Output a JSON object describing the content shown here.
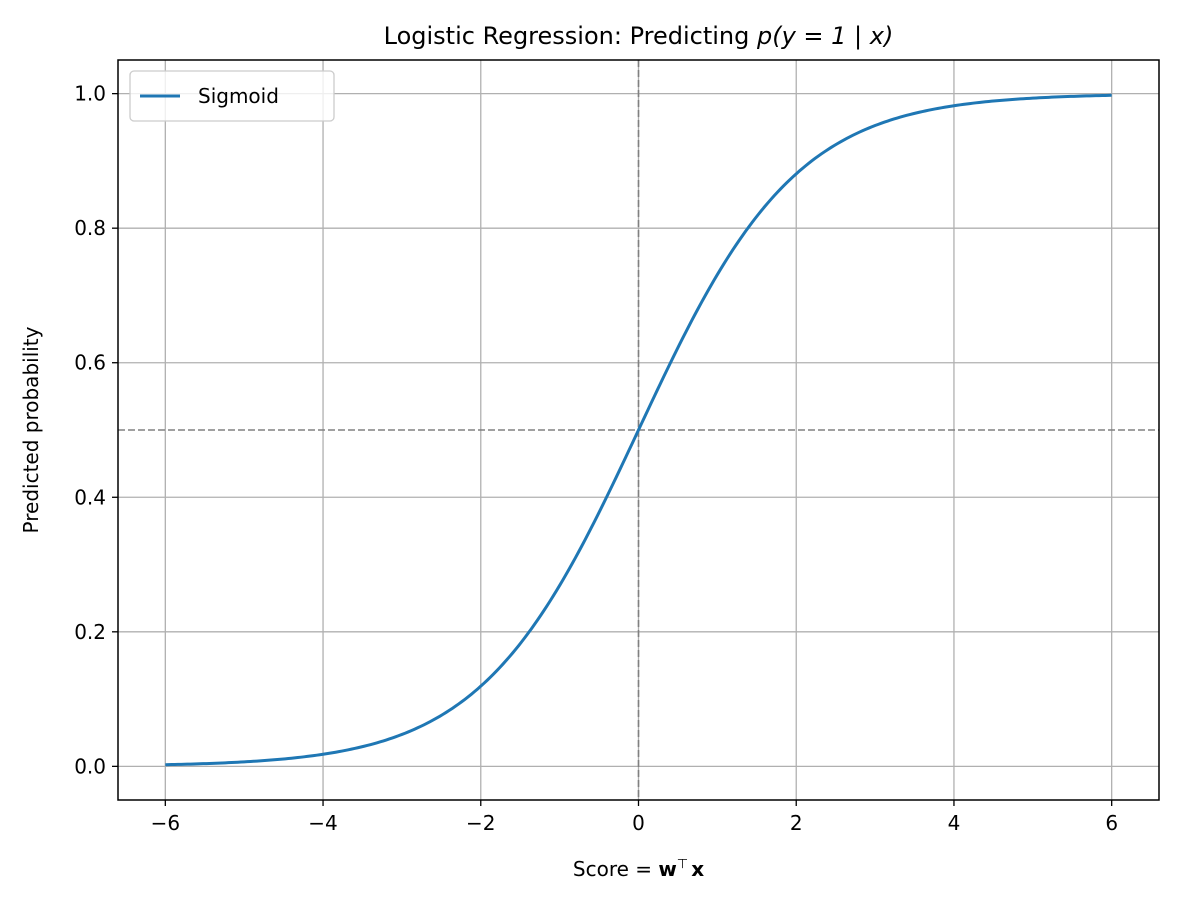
{
  "chart_data": {
    "type": "line",
    "title": {
      "prefix": "Logistic Regression: Predicting ",
      "math": "p(y = 1 | x)"
    },
    "xlabel": {
      "prefix": "Score = ",
      "math_bold_w": "w",
      "math_sup": "⊤",
      "math_bold_x": "x"
    },
    "ylabel": "Predicted probability",
    "xlim": [
      -6.6,
      6.6
    ],
    "ylim": [
      -0.05,
      1.05
    ],
    "x_ticks": [
      -6,
      -4,
      -2,
      0,
      2,
      4,
      6
    ],
    "x_tick_labels": [
      "−6",
      "−4",
      "−2",
      "0",
      "2",
      "4",
      "6"
    ],
    "y_ticks": [
      0.0,
      0.2,
      0.4,
      0.6,
      0.8,
      1.0
    ],
    "y_tick_labels": [
      "0.0",
      "0.2",
      "0.4",
      "0.6",
      "0.8",
      "1.0"
    ],
    "grid": true,
    "legend": {
      "placement": "upper-left"
    },
    "series": [
      {
        "name": "Sigmoid",
        "color": "#1f77b4",
        "function": "sigmoid",
        "x_range": [
          -6,
          6
        ],
        "x": [
          -6,
          -5,
          -4,
          -3,
          -2,
          -1,
          0,
          1,
          2,
          3,
          4,
          5,
          6
        ],
        "y": [
          0.0025,
          0.0067,
          0.018,
          0.047,
          0.119,
          0.269,
          0.5,
          0.731,
          0.881,
          0.953,
          0.982,
          0.9933,
          0.9975
        ]
      }
    ],
    "reference_lines": [
      {
        "orientation": "horizontal",
        "value": 0.5,
        "style": "dashed",
        "color": "#808080"
      },
      {
        "orientation": "vertical",
        "value": 0,
        "style": "dashed",
        "color": "#808080"
      }
    ]
  }
}
